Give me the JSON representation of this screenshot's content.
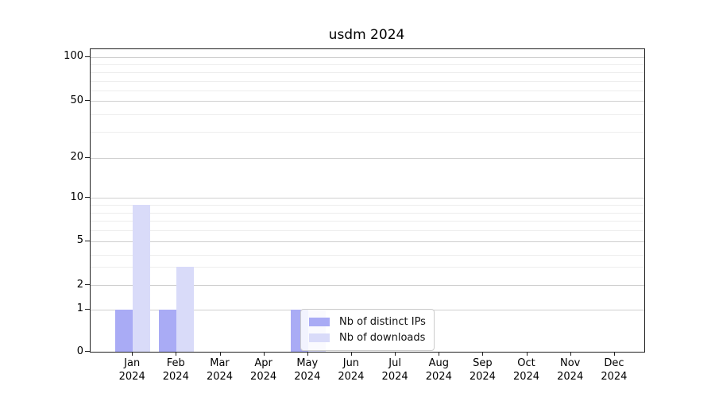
{
  "title": "usdm 2024",
  "colors": {
    "distinct_ips": "#a9abf5",
    "downloads": "#d9dbf9",
    "grid_major": "#cfcfcf",
    "grid_minor": "#ededed",
    "axis": "#1f1f1f"
  },
  "legend": {
    "items": [
      {
        "label": "Nb of distinct IPs",
        "color": "#a9abf5"
      },
      {
        "label": "Nb of downloads",
        "color": "#d9dbf9"
      }
    ]
  },
  "x_axis": {
    "months": [
      "Jan",
      "Feb",
      "Mar",
      "Apr",
      "May",
      "Jun",
      "Jul",
      "Aug",
      "Sep",
      "Oct",
      "Nov",
      "Dec"
    ],
    "year": "2024"
  },
  "y_axis": {
    "tick_values": [
      0,
      1,
      2,
      5,
      10,
      20,
      50,
      100
    ],
    "minor_gridline_values": [
      3,
      4,
      6,
      7,
      8,
      9,
      30,
      40,
      60,
      70,
      80,
      90
    ]
  },
  "chart_data": {
    "type": "bar",
    "title": "usdm 2024",
    "categories": [
      "Jan 2024",
      "Feb 2024",
      "Mar 2024",
      "Apr 2024",
      "May 2024",
      "Jun 2024",
      "Jul 2024",
      "Aug 2024",
      "Sep 2024",
      "Oct 2024",
      "Nov 2024",
      "Dec 2024"
    ],
    "series": [
      {
        "name": "Nb of distinct IPs",
        "color": "#a9abf5",
        "values": [
          1,
          1,
          0,
          0,
          1,
          0,
          0,
          0,
          0,
          0,
          0,
          0
        ]
      },
      {
        "name": "Nb of downloads",
        "color": "#d9dbf9",
        "values": [
          9,
          3,
          0,
          0,
          1,
          0,
          0,
          0,
          0,
          0,
          0,
          0
        ]
      }
    ],
    "xlabel": "",
    "ylabel": "",
    "yscale": "symlog",
    "y_ticks": [
      0,
      1,
      2,
      5,
      10,
      20,
      50,
      100
    ],
    "ylim": [
      0,
      115
    ],
    "grid": "horizontal-major-and-minor",
    "legend_position": "inside-bottom-center"
  }
}
